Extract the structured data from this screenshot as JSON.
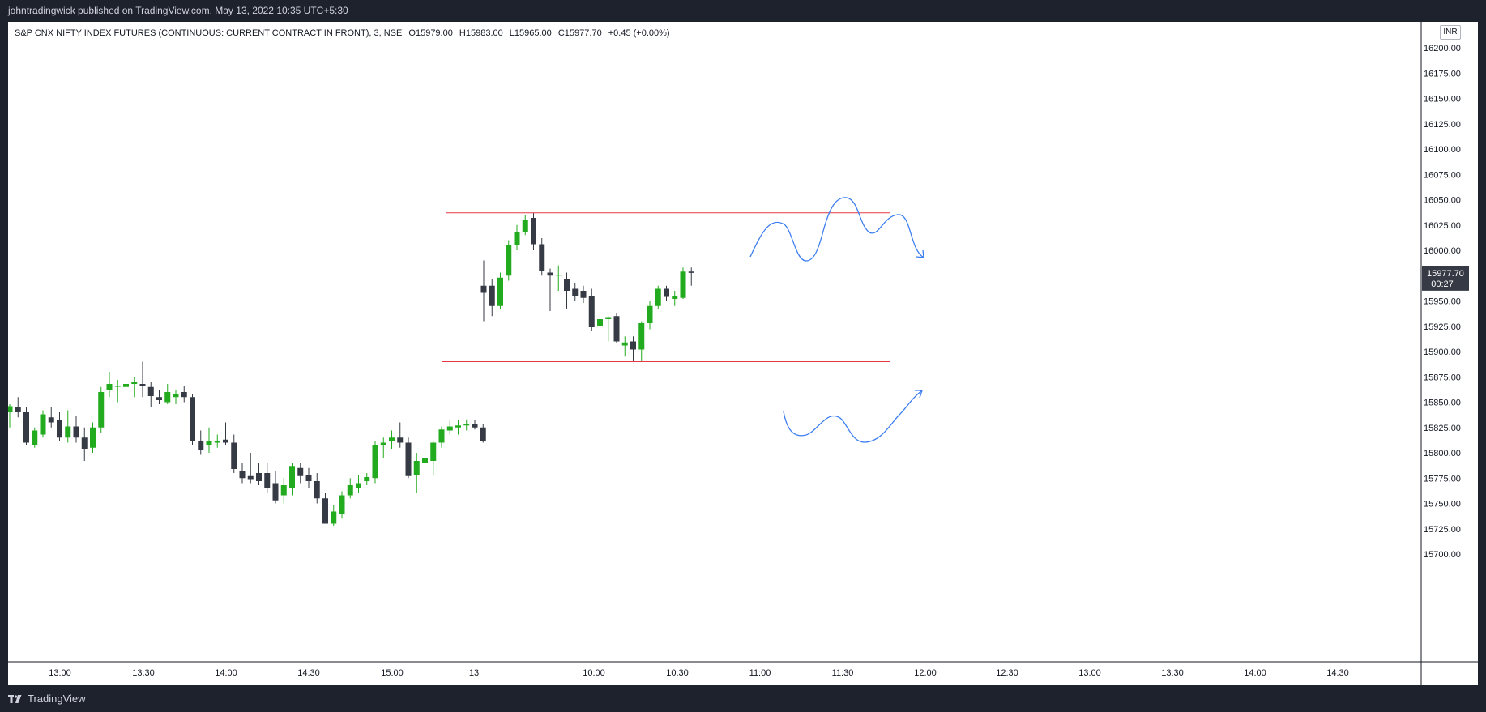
{
  "header": {
    "published_text": "johntradingwick published on TradingView.com, May 13, 2022 10:35 UTC+5:30"
  },
  "footer": {
    "brand_label": "TradingView",
    "logo_icon": "tradingview-logo-icon"
  },
  "legend": {
    "symbol": "S&P CNX NIFTY INDEX FUTURES (CONTINUOUS: CURRENT CONTRACT IN FRONT), 3, NSE",
    "open": "O15979.00",
    "high": "H15983.00",
    "low": "L15965.00",
    "close": "C15977.70",
    "change": "+0.45 (+0.00%)"
  },
  "currency": "INR",
  "price_tag": {
    "value": "15977.70",
    "countdown": "00:27",
    "color": "#363a45"
  },
  "colors": {
    "up": "#22ab1e",
    "down": "#363a45",
    "level_line": "#e53945",
    "drawing": "#3d7ef0"
  },
  "chart_data": {
    "type": "candlestick",
    "interval": "3",
    "exchange": "NSE",
    "y_axis": {
      "min": 15687.5,
      "max": 16212.5,
      "ticks": [
        "16200.00",
        "16175.00",
        "16150.00",
        "16125.00",
        "16100.00",
        "16075.00",
        "16050.00",
        "16025.00",
        "16000.00",
        "15975.00",
        "15950.00",
        "15925.00",
        "15900.00",
        "15875.00",
        "15850.00",
        "15825.00",
        "15800.00",
        "15775.00",
        "15750.00",
        "15725.00",
        "15700.00"
      ]
    },
    "x_axis": {
      "tick_labels": [
        "13:00",
        "13:30",
        "14:00",
        "14:30",
        "15:00",
        "13",
        "10:00",
        "10:30",
        "11:00",
        "11:30",
        "12:00",
        "12:30",
        "13:00",
        "13:30",
        "14:00",
        "14:30"
      ]
    },
    "horizontal_levels": [
      16037,
      15890
    ],
    "candles": [
      {
        "o": 15840,
        "h": 15848,
        "l": 15825,
        "c": 15846
      },
      {
        "o": 15845,
        "h": 15855,
        "l": 15835,
        "c": 15840
      },
      {
        "o": 15840,
        "h": 15845,
        "l": 15808,
        "c": 15810
      },
      {
        "o": 15808,
        "h": 15825,
        "l": 15805,
        "c": 15822
      },
      {
        "o": 15818,
        "h": 15842,
        "l": 15815,
        "c": 15838
      },
      {
        "o": 15835,
        "h": 15845,
        "l": 15825,
        "c": 15830
      },
      {
        "o": 15832,
        "h": 15840,
        "l": 15812,
        "c": 15815
      },
      {
        "o": 15815,
        "h": 15842,
        "l": 15810,
        "c": 15826
      },
      {
        "o": 15826,
        "h": 15836,
        "l": 15810,
        "c": 15815
      },
      {
        "o": 15815,
        "h": 15825,
        "l": 15792,
        "c": 15804
      },
      {
        "o": 15805,
        "h": 15830,
        "l": 15800,
        "c": 15825
      },
      {
        "o": 15825,
        "h": 15865,
        "l": 15820,
        "c": 15860
      },
      {
        "o": 15862,
        "h": 15880,
        "l": 15855,
        "c": 15868
      },
      {
        "o": 15866,
        "h": 15872,
        "l": 15850,
        "c": 15866
      },
      {
        "o": 15865,
        "h": 15875,
        "l": 15855,
        "c": 15868
      },
      {
        "o": 15868,
        "h": 15875,
        "l": 15855,
        "c": 15870
      },
      {
        "o": 15868,
        "h": 15890,
        "l": 15855,
        "c": 15866
      },
      {
        "o": 15865,
        "h": 15870,
        "l": 15845,
        "c": 15856
      },
      {
        "o": 15855,
        "h": 15862,
        "l": 15848,
        "c": 15852
      },
      {
        "o": 15850,
        "h": 15868,
        "l": 15848,
        "c": 15860
      },
      {
        "o": 15855,
        "h": 15862,
        "l": 15848,
        "c": 15858
      },
      {
        "o": 15860,
        "h": 15866,
        "l": 15850,
        "c": 15855
      },
      {
        "o": 15855,
        "h": 15858,
        "l": 15808,
        "c": 15812
      },
      {
        "o": 15812,
        "h": 15822,
        "l": 15798,
        "c": 15803
      },
      {
        "o": 15808,
        "h": 15825,
        "l": 15800,
        "c": 15812
      },
      {
        "o": 15810,
        "h": 15818,
        "l": 15805,
        "c": 15812
      },
      {
        "o": 15813,
        "h": 15830,
        "l": 15808,
        "c": 15810
      },
      {
        "o": 15810,
        "h": 15818,
        "l": 15780,
        "c": 15784
      },
      {
        "o": 15782,
        "h": 15790,
        "l": 15770,
        "c": 15775
      },
      {
        "o": 15777,
        "h": 15800,
        "l": 15770,
        "c": 15774
      },
      {
        "o": 15780,
        "h": 15790,
        "l": 15768,
        "c": 15772
      },
      {
        "o": 15780,
        "h": 15790,
        "l": 15760,
        "c": 15765
      },
      {
        "o": 15770,
        "h": 15782,
        "l": 15750,
        "c": 15753
      },
      {
        "o": 15758,
        "h": 15775,
        "l": 15750,
        "c": 15768
      },
      {
        "o": 15765,
        "h": 15790,
        "l": 15758,
        "c": 15787
      },
      {
        "o": 15785,
        "h": 15790,
        "l": 15770,
        "c": 15777
      },
      {
        "o": 15778,
        "h": 15785,
        "l": 15765,
        "c": 15772
      },
      {
        "o": 15772,
        "h": 15780,
        "l": 15750,
        "c": 15755
      },
      {
        "o": 15755,
        "h": 15760,
        "l": 15732,
        "c": 15730
      },
      {
        "o": 15730,
        "h": 15748,
        "l": 15728,
        "c": 15742
      },
      {
        "o": 15740,
        "h": 15762,
        "l": 15735,
        "c": 15758
      },
      {
        "o": 15758,
        "h": 15775,
        "l": 15755,
        "c": 15768
      },
      {
        "o": 15765,
        "h": 15778,
        "l": 15760,
        "c": 15770
      },
      {
        "o": 15772,
        "h": 15780,
        "l": 15768,
        "c": 15776
      },
      {
        "o": 15775,
        "h": 15812,
        "l": 15770,
        "c": 15808
      },
      {
        "o": 15808,
        "h": 15815,
        "l": 15795,
        "c": 15810
      },
      {
        "o": 15812,
        "h": 15822,
        "l": 15804,
        "c": 15815
      },
      {
        "o": 15815,
        "h": 15830,
        "l": 15805,
        "c": 15810
      },
      {
        "o": 15810,
        "h": 15815,
        "l": 15775,
        "c": 15777
      },
      {
        "o": 15778,
        "h": 15800,
        "l": 15760,
        "c": 15792
      },
      {
        "o": 15790,
        "h": 15798,
        "l": 15784,
        "c": 15795
      },
      {
        "o": 15792,
        "h": 15812,
        "l": 15778,
        "c": 15810
      },
      {
        "o": 15810,
        "h": 15826,
        "l": 15805,
        "c": 15823
      },
      {
        "o": 15822,
        "h": 15832,
        "l": 15818,
        "c": 15826
      },
      {
        "o": 15825,
        "h": 15832,
        "l": 15818,
        "c": 15827
      },
      {
        "o": 15827,
        "h": 15833,
        "l": 15822,
        "c": 15828
      },
      {
        "o": 15828,
        "h": 15832,
        "l": 15823,
        "c": 15825
      },
      {
        "o": 15825,
        "h": 15828,
        "l": 15810,
        "c": 15812
      },
      {
        "o": 15965,
        "h": 15990,
        "l": 15930,
        "c": 15958
      },
      {
        "o": 15965,
        "h": 15972,
        "l": 15935,
        "c": 15945
      },
      {
        "o": 15945,
        "h": 15978,
        "l": 15942,
        "c": 15973
      },
      {
        "o": 15975,
        "h": 16010,
        "l": 15970,
        "c": 16005
      },
      {
        "o": 16005,
        "h": 16025,
        "l": 16000,
        "c": 16018
      },
      {
        "o": 16018,
        "h": 16035,
        "l": 16015,
        "c": 16030
      },
      {
        "o": 16032,
        "h": 16037,
        "l": 16000,
        "c": 16006
      },
      {
        "o": 16006,
        "h": 16012,
        "l": 15975,
        "c": 15980
      },
      {
        "o": 15978,
        "h": 15982,
        "l": 15940,
        "c": 15975
      },
      {
        "o": 15975,
        "h": 15985,
        "l": 15960,
        "c": 15976
      },
      {
        "o": 15972,
        "h": 15978,
        "l": 15942,
        "c": 15960
      },
      {
        "o": 15962,
        "h": 15968,
        "l": 15950,
        "c": 15955
      },
      {
        "o": 15960,
        "h": 15965,
        "l": 15948,
        "c": 15953
      },
      {
        "o": 15955,
        "h": 15962,
        "l": 15920,
        "c": 15924
      },
      {
        "o": 15925,
        "h": 15940,
        "l": 15915,
        "c": 15932
      },
      {
        "o": 15932,
        "h": 15935,
        "l": 15910,
        "c": 15934
      },
      {
        "o": 15935,
        "h": 15938,
        "l": 15908,
        "c": 15910
      },
      {
        "o": 15906,
        "h": 15915,
        "l": 15895,
        "c": 15909
      },
      {
        "o": 15910,
        "h": 15915,
        "l": 15890,
        "c": 15902
      },
      {
        "o": 15902,
        "h": 15930,
        "l": 15890,
        "c": 15928
      },
      {
        "o": 15928,
        "h": 15950,
        "l": 15922,
        "c": 15945
      },
      {
        "o": 15945,
        "h": 15965,
        "l": 15942,
        "c": 15962
      },
      {
        "o": 15962,
        "h": 15965,
        "l": 15950,
        "c": 15954
      },
      {
        "o": 15952,
        "h": 15960,
        "l": 15945,
        "c": 15955
      },
      {
        "o": 15953,
        "h": 15983,
        "l": 15952,
        "c": 15979
      },
      {
        "o": 15979,
        "h": 15983,
        "l": 15965,
        "c": 15977.7
      }
    ]
  }
}
